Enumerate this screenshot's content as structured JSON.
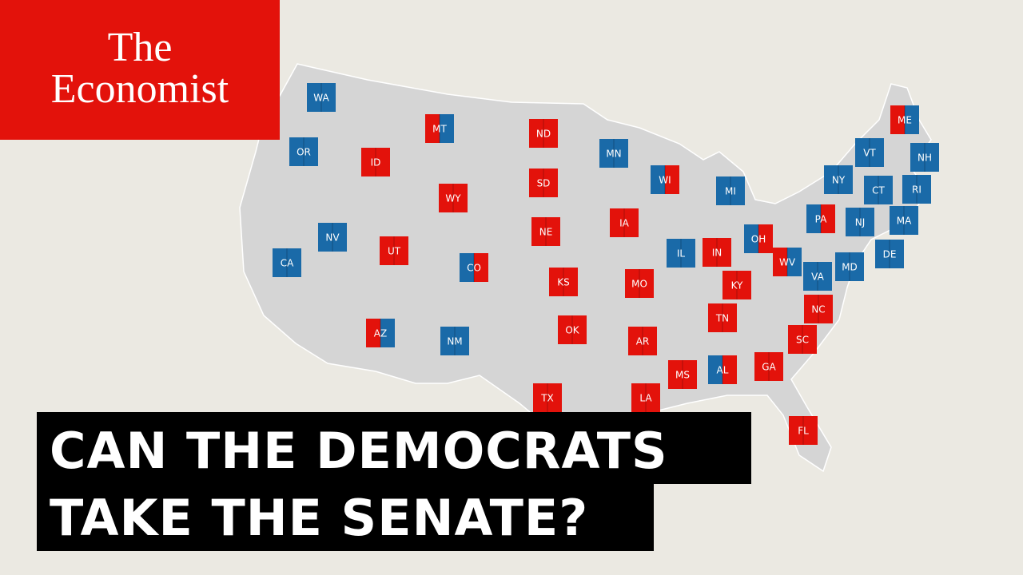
{
  "logo": {
    "lines": [
      "The",
      "Economist"
    ]
  },
  "headline": {
    "lines": [
      "CAN THE DEMOCRATS",
      "TAKE THE SENATE?"
    ]
  },
  "map": {
    "states": [
      {
        "label": "WA",
        "colors": [
          "#1a6aa8",
          "#1a6aa8"
        ]
      },
      {
        "label": "OR",
        "colors": [
          "#1a6aa8",
          "#1a6aa8"
        ]
      },
      {
        "label": "ID",
        "colors": [
          "#e3120b",
          "#e3120b"
        ]
      },
      {
        "label": "MT",
        "colors": [
          "#e3120b",
          "#1a6aa8"
        ]
      },
      {
        "label": "ND",
        "colors": [
          "#e3120b",
          "#e3120b"
        ]
      },
      {
        "label": "SD",
        "colors": [
          "#e3120b",
          "#e3120b"
        ]
      },
      {
        "label": "WY",
        "colors": [
          "#e3120b",
          "#e3120b"
        ]
      },
      {
        "label": "NE",
        "colors": [
          "#e3120b",
          "#e3120b"
        ]
      },
      {
        "label": "IA",
        "colors": [
          "#e3120b",
          "#e3120b"
        ]
      },
      {
        "label": "MN",
        "colors": [
          "#1a6aa8",
          "#1a6aa8"
        ]
      },
      {
        "label": "WI",
        "colors": [
          "#1a6aa8",
          "#e3120b"
        ]
      },
      {
        "label": "MI",
        "colors": [
          "#1a6aa8",
          "#1a6aa8"
        ]
      },
      {
        "label": "NV",
        "colors": [
          "#1a6aa8",
          "#1a6aa8"
        ]
      },
      {
        "label": "CA",
        "colors": [
          "#1a6aa8",
          "#1a6aa8"
        ]
      },
      {
        "label": "UT",
        "colors": [
          "#e3120b",
          "#e3120b"
        ]
      },
      {
        "label": "CO",
        "colors": [
          "#1a6aa8",
          "#e3120b"
        ]
      },
      {
        "label": "KS",
        "colors": [
          "#e3120b",
          "#e3120b"
        ]
      },
      {
        "label": "MO",
        "colors": [
          "#e3120b",
          "#e3120b"
        ]
      },
      {
        "label": "IL",
        "colors": [
          "#1a6aa8",
          "#1a6aa8"
        ]
      },
      {
        "label": "IN",
        "colors": [
          "#e3120b",
          "#e3120b"
        ]
      },
      {
        "label": "OH",
        "colors": [
          "#1a6aa8",
          "#e3120b"
        ]
      },
      {
        "label": "KY",
        "colors": [
          "#e3120b",
          "#e3120b"
        ]
      },
      {
        "label": "WV",
        "colors": [
          "#e3120b",
          "#1a6aa8"
        ]
      },
      {
        "label": "PA",
        "colors": [
          "#1a6aa8",
          "#e3120b"
        ]
      },
      {
        "label": "NY",
        "colors": [
          "#1a6aa8",
          "#1a6aa8"
        ]
      },
      {
        "label": "VT",
        "colors": [
          "#1a6aa8",
          "#1a6aa8"
        ]
      },
      {
        "label": "NH",
        "colors": [
          "#1a6aa8",
          "#1a6aa8"
        ]
      },
      {
        "label": "ME",
        "colors": [
          "#e3120b",
          "#1a6aa8"
        ]
      },
      {
        "label": "CT",
        "colors": [
          "#1a6aa8",
          "#1a6aa8"
        ]
      },
      {
        "label": "RI",
        "colors": [
          "#1a6aa8",
          "#1a6aa8"
        ]
      },
      {
        "label": "MA",
        "colors": [
          "#1a6aa8",
          "#1a6aa8"
        ]
      },
      {
        "label": "NJ",
        "colors": [
          "#1a6aa8",
          "#1a6aa8"
        ]
      },
      {
        "label": "DE",
        "colors": [
          "#1a6aa8",
          "#1a6aa8"
        ]
      },
      {
        "label": "MD",
        "colors": [
          "#1a6aa8",
          "#1a6aa8"
        ]
      },
      {
        "label": "VA",
        "colors": [
          "#1a6aa8",
          "#1a6aa8"
        ]
      },
      {
        "label": "NC",
        "colors": [
          "#e3120b",
          "#e3120b"
        ]
      },
      {
        "label": "SC",
        "colors": [
          "#e3120b",
          "#e3120b"
        ]
      },
      {
        "label": "TN",
        "colors": [
          "#e3120b",
          "#e3120b"
        ]
      },
      {
        "label": "GA",
        "colors": [
          "#e3120b",
          "#e3120b"
        ]
      },
      {
        "label": "AL",
        "colors": [
          "#1a6aa8",
          "#e3120b"
        ]
      },
      {
        "label": "MS",
        "colors": [
          "#e3120b",
          "#e3120b"
        ]
      },
      {
        "label": "AR",
        "colors": [
          "#e3120b",
          "#e3120b"
        ]
      },
      {
        "label": "LA",
        "colors": [
          "#e3120b",
          "#e3120b"
        ]
      },
      {
        "label": "TX",
        "colors": [
          "#e3120b",
          "#e3120b"
        ]
      },
      {
        "label": "OK",
        "colors": [
          "#e3120b",
          "#e3120b"
        ]
      },
      {
        "label": "AZ",
        "colors": [
          "#e3120b",
          "#1a6aa8"
        ]
      },
      {
        "label": "NM",
        "colors": [
          "#1a6aa8",
          "#1a6aa8"
        ]
      },
      {
        "label": "FL",
        "colors": [
          "#e3120b",
          "#e3120b"
        ]
      }
    ]
  }
}
